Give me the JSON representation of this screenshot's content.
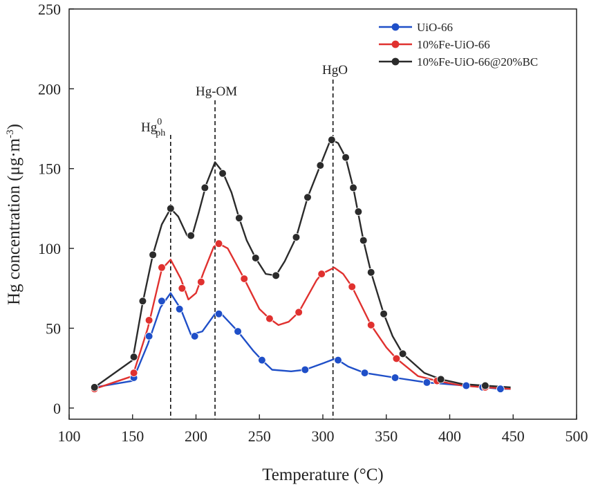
{
  "chart_data": {
    "type": "line",
    "xlabel": "Temperature (°C)",
    "ylabel": "Hg concentration (μg·m",
    "ylabel_sup": "-3",
    "ylabel_close": ")",
    "xlim": [
      100,
      500
    ],
    "ylim": [
      -7,
      250
    ],
    "xticks": [
      100,
      150,
      200,
      250,
      300,
      350,
      400,
      450,
      500
    ],
    "yticks": [
      0,
      50,
      100,
      150,
      200,
      250
    ],
    "legend_position": "top-right",
    "series": [
      {
        "name": "UiO-66",
        "color": "#1f4fc8",
        "points": [
          [
            120,
            13
          ],
          [
            151,
            19
          ],
          [
            163,
            45
          ],
          [
            173,
            67
          ],
          [
            187,
            62
          ],
          [
            199,
            45
          ],
          [
            218,
            59
          ],
          [
            233,
            48
          ],
          [
            252,
            30
          ],
          [
            286,
            24
          ],
          [
            312,
            30
          ],
          [
            333,
            22
          ],
          [
            357,
            19
          ],
          [
            382,
            16
          ],
          [
            413,
            14
          ],
          [
            426,
            13
          ],
          [
            440,
            12
          ]
        ],
        "curve": [
          [
            120,
            13
          ],
          [
            150,
            17
          ],
          [
            162,
            40
          ],
          [
            172,
            63
          ],
          [
            180,
            72
          ],
          [
            188,
            62
          ],
          [
            196,
            46
          ],
          [
            205,
            48
          ],
          [
            215,
            59
          ],
          [
            220,
            59
          ],
          [
            233,
            48
          ],
          [
            245,
            36
          ],
          [
            252,
            30
          ],
          [
            260,
            24
          ],
          [
            275,
            23
          ],
          [
            286,
            24
          ],
          [
            300,
            28
          ],
          [
            310,
            31
          ],
          [
            320,
            26
          ],
          [
            333,
            22
          ],
          [
            357,
            19
          ],
          [
            382,
            16
          ],
          [
            413,
            14
          ],
          [
            440,
            12
          ],
          [
            448,
            12
          ]
        ]
      },
      {
        "name": "10%Fe-UiO-66",
        "color": "#e0312f",
        "points": [
          [
            120,
            12
          ],
          [
            151,
            22
          ],
          [
            163,
            55
          ],
          [
            173,
            88
          ],
          [
            189,
            75
          ],
          [
            204,
            79
          ],
          [
            218,
            103
          ],
          [
            238,
            81
          ],
          [
            258,
            56
          ],
          [
            281,
            60
          ],
          [
            299,
            84
          ],
          [
            323,
            76
          ],
          [
            338,
            52
          ],
          [
            358,
            31
          ],
          [
            390,
            17
          ],
          [
            428,
            13
          ]
        ],
        "curve": [
          [
            120,
            12
          ],
          [
            150,
            20
          ],
          [
            162,
            50
          ],
          [
            173,
            87
          ],
          [
            180,
            93
          ],
          [
            188,
            81
          ],
          [
            194,
            68
          ],
          [
            200,
            72
          ],
          [
            206,
            85
          ],
          [
            214,
            101
          ],
          [
            218,
            103
          ],
          [
            225,
            100
          ],
          [
            238,
            81
          ],
          [
            250,
            62
          ],
          [
            258,
            56
          ],
          [
            265,
            52
          ],
          [
            273,
            54
          ],
          [
            281,
            60
          ],
          [
            295,
            80
          ],
          [
            299,
            84
          ],
          [
            309,
            88
          ],
          [
            316,
            84
          ],
          [
            323,
            76
          ],
          [
            338,
            52
          ],
          [
            350,
            38
          ],
          [
            358,
            31
          ],
          [
            375,
            20
          ],
          [
            390,
            17
          ],
          [
            410,
            14
          ],
          [
            428,
            13
          ],
          [
            448,
            12
          ]
        ]
      },
      {
        "name": "10%Fe-UiO-66@20%BC",
        "color": "#2b2b2b",
        "points": [
          [
            120,
            13
          ],
          [
            151,
            32
          ],
          [
            158,
            67
          ],
          [
            166,
            96
          ],
          [
            180,
            125
          ],
          [
            196,
            108
          ],
          [
            207,
            138
          ],
          [
            221,
            147
          ],
          [
            234,
            119
          ],
          [
            247,
            94
          ],
          [
            263,
            83
          ],
          [
            279,
            107
          ],
          [
            288,
            132
          ],
          [
            298,
            152
          ],
          [
            307,
            168
          ],
          [
            318,
            157
          ],
          [
            324,
            138
          ],
          [
            328,
            123
          ],
          [
            332,
            105
          ],
          [
            338,
            85
          ],
          [
            348,
            59
          ],
          [
            363,
            34
          ],
          [
            393,
            18
          ],
          [
            428,
            14
          ]
        ],
        "curve": [
          [
            120,
            13
          ],
          [
            150,
            30
          ],
          [
            158,
            66
          ],
          [
            166,
            96
          ],
          [
            173,
            115
          ],
          [
            180,
            125
          ],
          [
            186,
            120
          ],
          [
            193,
            108
          ],
          [
            197,
            108
          ],
          [
            202,
            122
          ],
          [
            208,
            140
          ],
          [
            215,
            154
          ],
          [
            221,
            148
          ],
          [
            228,
            135
          ],
          [
            234,
            119
          ],
          [
            240,
            105
          ],
          [
            247,
            94
          ],
          [
            255,
            84
          ],
          [
            263,
            83
          ],
          [
            270,
            92
          ],
          [
            279,
            107
          ],
          [
            288,
            132
          ],
          [
            298,
            152
          ],
          [
            305,
            166
          ],
          [
            307,
            168
          ],
          [
            312,
            166
          ],
          [
            318,
            157
          ],
          [
            324,
            138
          ],
          [
            332,
            105
          ],
          [
            338,
            85
          ],
          [
            348,
            59
          ],
          [
            355,
            45
          ],
          [
            363,
            34
          ],
          [
            380,
            22
          ],
          [
            393,
            18
          ],
          [
            410,
            15
          ],
          [
            428,
            14
          ],
          [
            448,
            13
          ]
        ]
      }
    ],
    "annotations": [
      {
        "x": 180,
        "label": "Hg",
        "sup": "0",
        "sub": "ph"
      },
      {
        "x": 215,
        "label": "Hg-OM"
      },
      {
        "x": 308,
        "label": "HgO"
      }
    ]
  }
}
